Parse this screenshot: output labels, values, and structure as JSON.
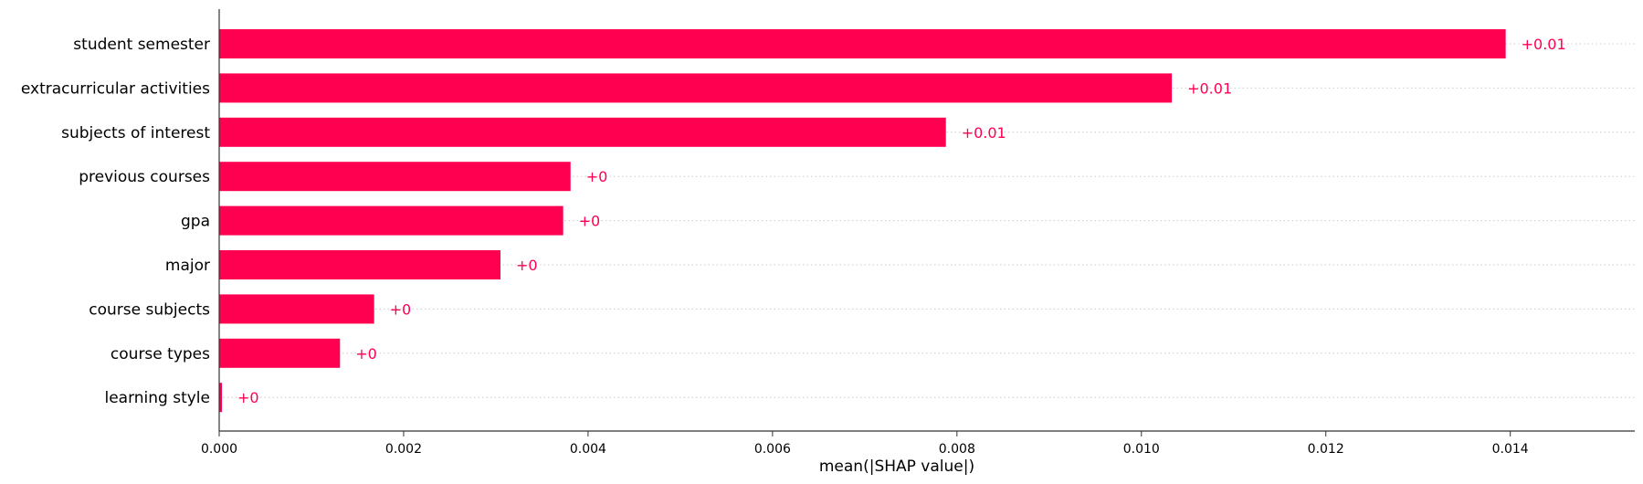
{
  "chart_data": {
    "type": "bar",
    "orientation": "horizontal",
    "categories": [
      "student semester",
      "extracurricular activities",
      "subjects of interest",
      "previous courses",
      "gpa",
      "major",
      "course subjects",
      "course types",
      "learning style"
    ],
    "values": [
      0.01395,
      0.01033,
      0.00788,
      0.00381,
      0.00373,
      0.00305,
      0.00168,
      0.00131,
      3e-05
    ],
    "value_labels": [
      "+0.01",
      "+0.01",
      "+0.01",
      "+0",
      "+0",
      "+0",
      "+0",
      "+0",
      "+0"
    ],
    "xlabel": "mean(|SHAP value|)",
    "ylabel": "",
    "title": "",
    "xlim": [
      0,
      0.01535
    ],
    "x_ticks": [
      0,
      0.002,
      0.004,
      0.006,
      0.008,
      0.01,
      0.012,
      0.014
    ],
    "x_tick_labels": [
      "0.000",
      "0.002",
      "0.004",
      "0.006",
      "0.008",
      "0.010",
      "0.012",
      "0.014"
    ],
    "grid": "dotted horizontal per row",
    "legend": "none",
    "bar_color": "#ff0051"
  }
}
